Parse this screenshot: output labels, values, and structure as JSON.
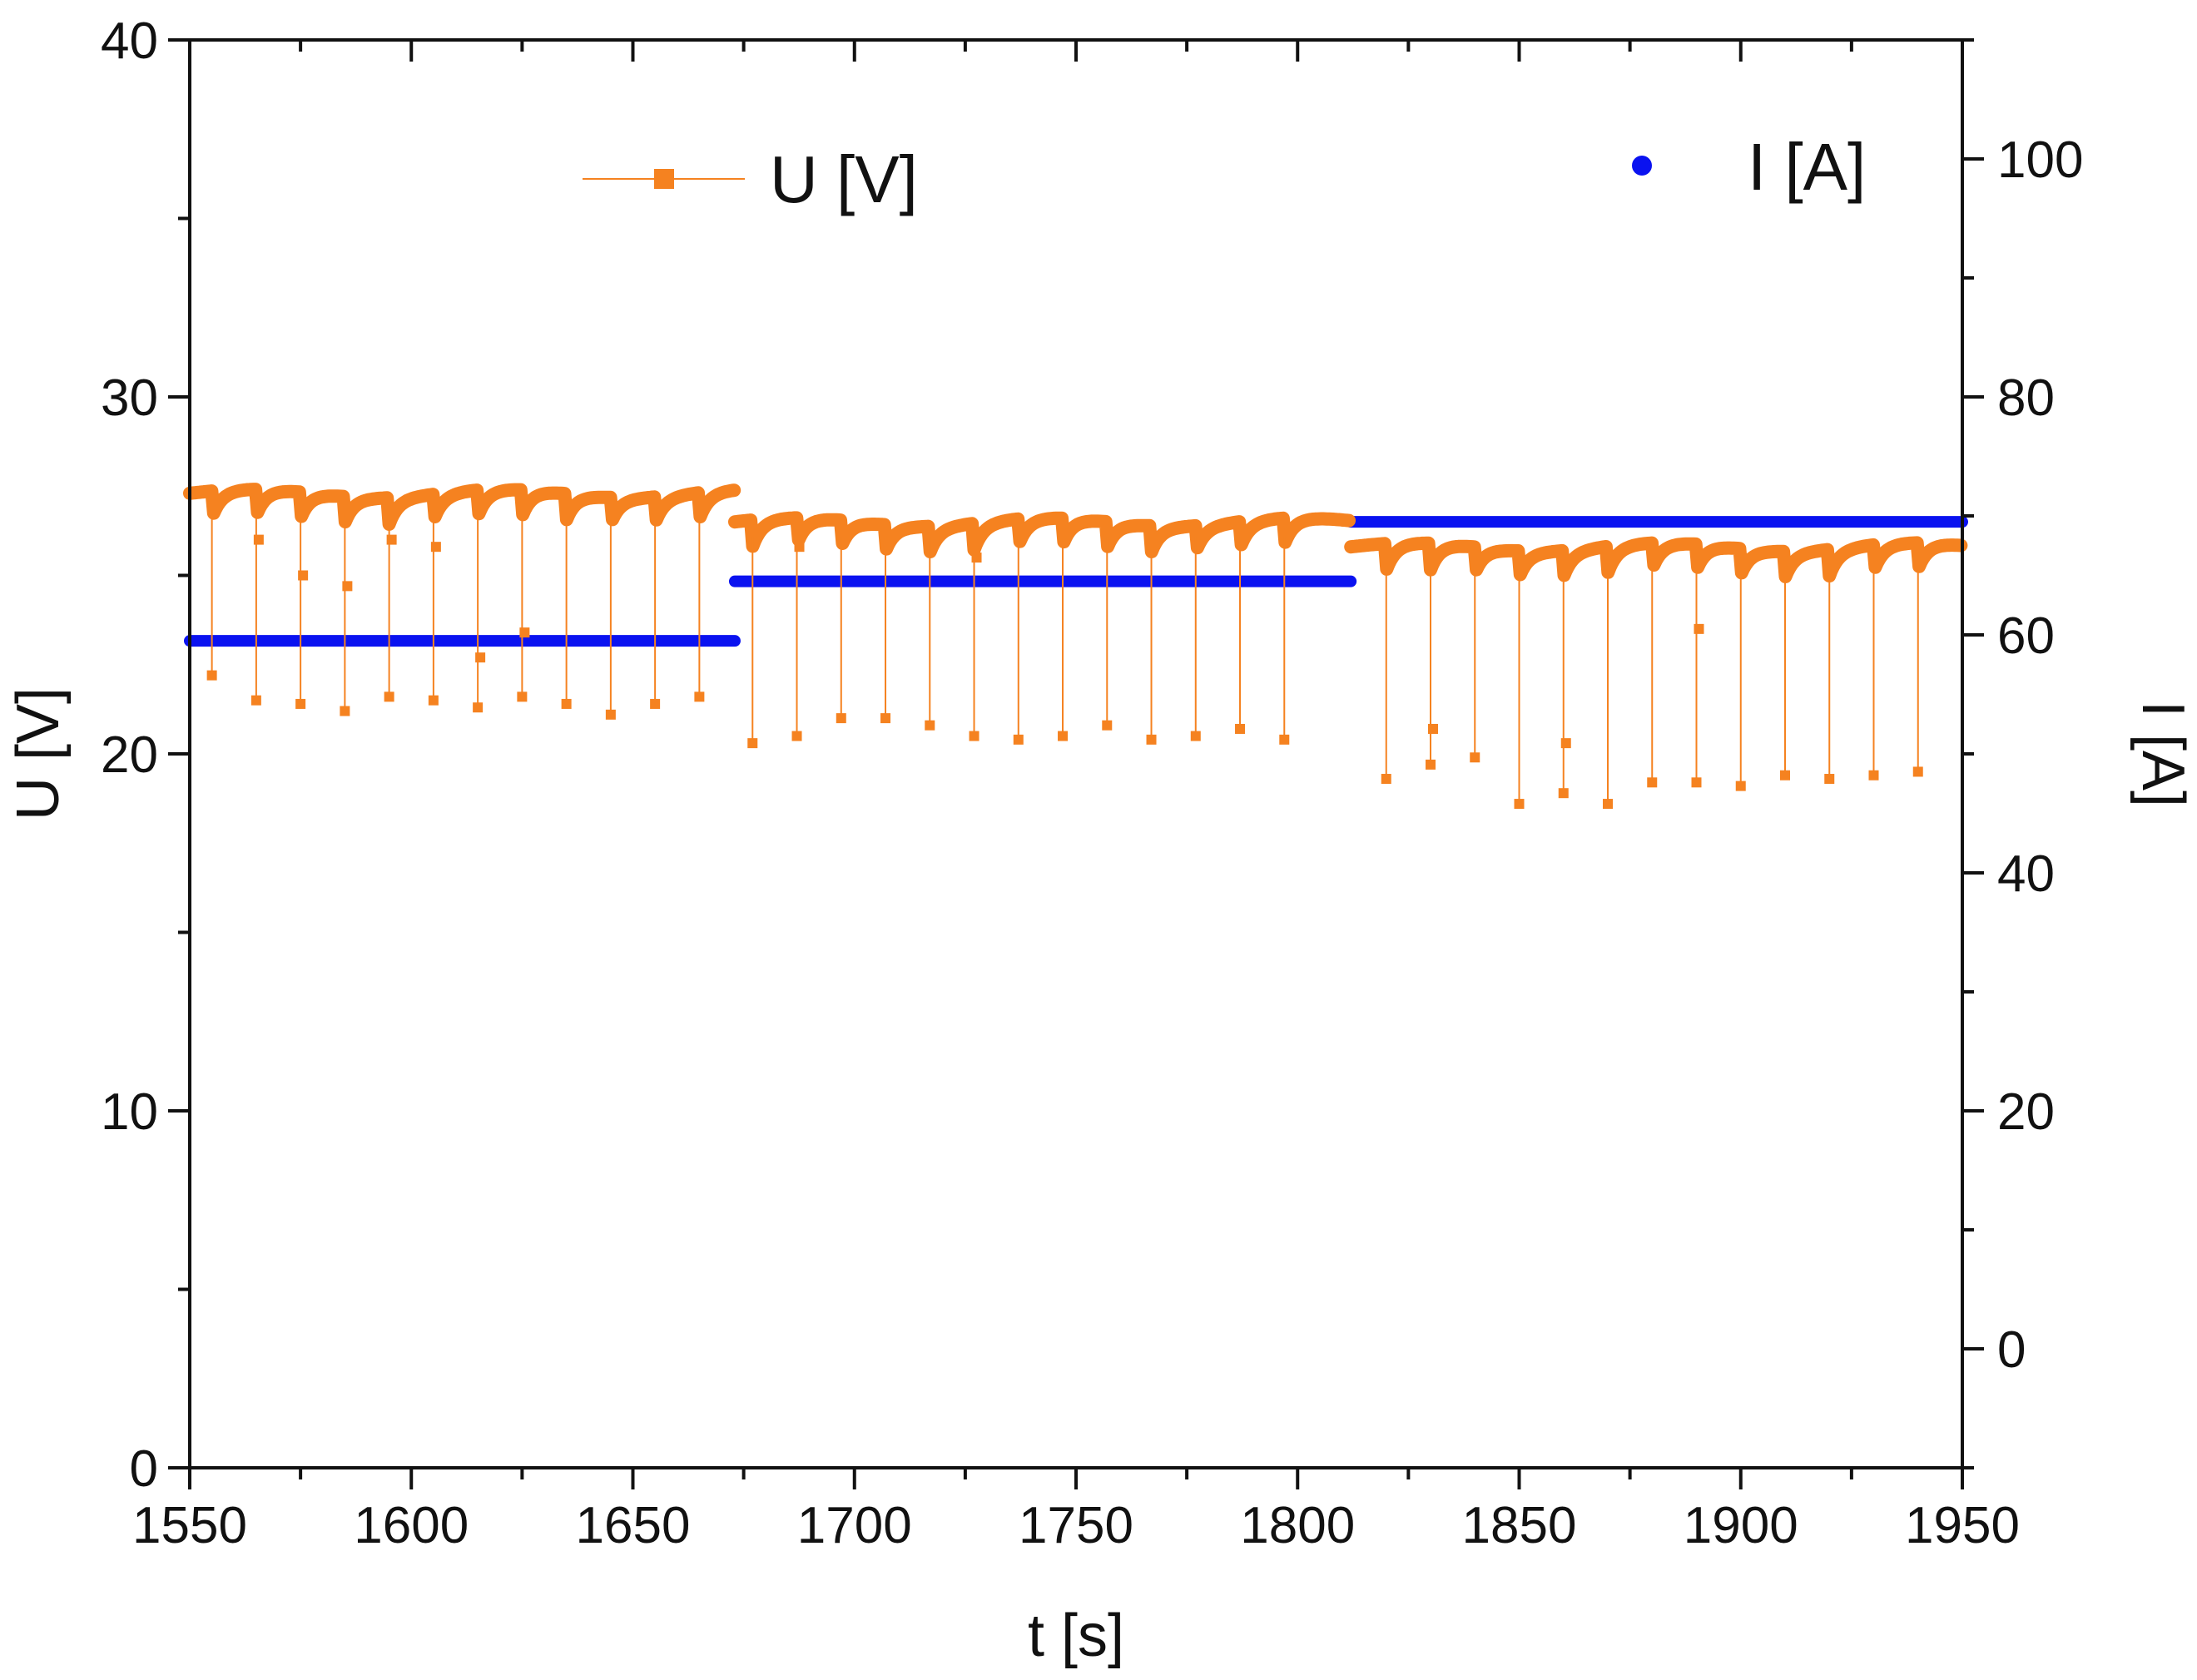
{
  "chart_data": {
    "type": "line",
    "title": "",
    "xlabel": "t [s]",
    "ylabel_left": "U [V]",
    "ylabel_right": "I [A]",
    "xlim": [
      1550,
      1950
    ],
    "ylim_left": [
      0,
      40
    ],
    "ylim_right": [
      -10,
      110
    ],
    "x_ticks": [
      1550,
      1600,
      1650,
      1700,
      1750,
      1800,
      1850,
      1900,
      1950
    ],
    "x_tick_labels": [
      "1550",
      "1600",
      "1650",
      "1700",
      "1750",
      "1800",
      "1850",
      "1900",
      "1950"
    ],
    "y_left_ticks": [
      0,
      10,
      20,
      30,
      40
    ],
    "y_left_tick_labels": [
      "0",
      "10",
      "20",
      "30",
      "40"
    ],
    "y_right_ticks": [
      0,
      20,
      40,
      60,
      80,
      100
    ],
    "y_right_tick_labels": [
      "0",
      "20",
      "40",
      "60",
      "80",
      "100"
    ],
    "grid": false,
    "legend": [
      {
        "label": "U [V]",
        "marker": "square-line",
        "color": "#f58220",
        "placement": "top-center"
      },
      {
        "label": "I [A]",
        "marker": "circle",
        "color": "#0a12f0",
        "placement": "top-right"
      }
    ],
    "series": [
      {
        "name": "I [A]",
        "axis": "right",
        "color": "#0a12f0",
        "style": "dense-points",
        "segments": [
          {
            "t_start": 1550,
            "t_end": 1673,
            "value": 59.5
          },
          {
            "t_start": 1673,
            "t_end": 1812,
            "value": 64.5
          },
          {
            "t_start": 1812,
            "t_end": 1950,
            "value": 69.5
          }
        ]
      },
      {
        "name": "U [V]",
        "axis": "left",
        "color": "#f58220",
        "style": "line-with-square-markers",
        "plateaus": [
          {
            "t_start": 1550,
            "t_end": 1673,
            "level": 27.3,
            "pulse_period": 10,
            "first_pulse": 1555,
            "minima": [
              22.2,
              21.5,
              21.4,
              21.2,
              21.6,
              21.5,
              21.3,
              21.6,
              21.4,
              21.1,
              21.4,
              21.6
            ],
            "recovery": [
              26.0,
              25.0,
              24.7,
              26.0,
              25.8,
              22.7,
              23.4
            ]
          },
          {
            "t_start": 1673,
            "t_end": 1812,
            "level": 26.5,
            "pulse_period": 10,
            "first_pulse": 1677,
            "minima": [
              20.3,
              20.5,
              21.0,
              21.0,
              20.8,
              20.5,
              20.4,
              20.5,
              20.8,
              20.4,
              20.5,
              20.7,
              20.4
            ],
            "recovery": [
              25.8,
              25.5
            ]
          },
          {
            "t_start": 1812,
            "t_end": 1950,
            "level": 25.8,
            "pulse_period": 10,
            "first_pulse": 1820,
            "minima": [
              19.3,
              19.7,
              19.9,
              18.6,
              18.9,
              18.6,
              19.2,
              19.2,
              19.1,
              19.4,
              19.3,
              19.4,
              19.5
            ],
            "recovery": [
              20.7,
              20.3,
              23.5
            ]
          }
        ]
      }
    ]
  }
}
